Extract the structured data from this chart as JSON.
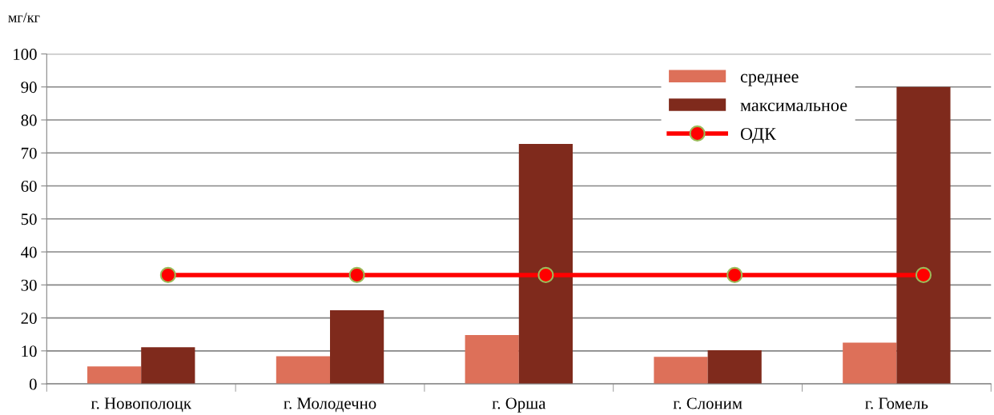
{
  "chart_data": {
    "type": "bar",
    "ylabel": "мг/кг",
    "categories": [
      "г. Новополоцк",
      "г. Молодечно",
      "г. Орша",
      "г. Слоним",
      "г. Гомель"
    ],
    "series": [
      {
        "name": "среднее",
        "color": "#dd7059",
        "values": [
          5.3,
          8.4,
          14.8,
          8.2,
          12.5
        ]
      },
      {
        "name": "максимальное",
        "color": "#7f2a1c",
        "values": [
          11.1,
          22.3,
          72.7,
          10.2,
          90
        ]
      },
      {
        "name": "ОДК",
        "type": "line",
        "color": "#ff0000",
        "values": [
          33,
          33,
          33,
          33,
          33
        ],
        "marker": "circle",
        "line_style": "solid"
      }
    ],
    "ylim": [
      0,
      100
    ],
    "yticks": [
      0,
      10,
      20,
      30,
      40,
      50,
      60,
      70,
      80,
      90,
      100
    ],
    "grid": "y",
    "legend": "top right"
  }
}
